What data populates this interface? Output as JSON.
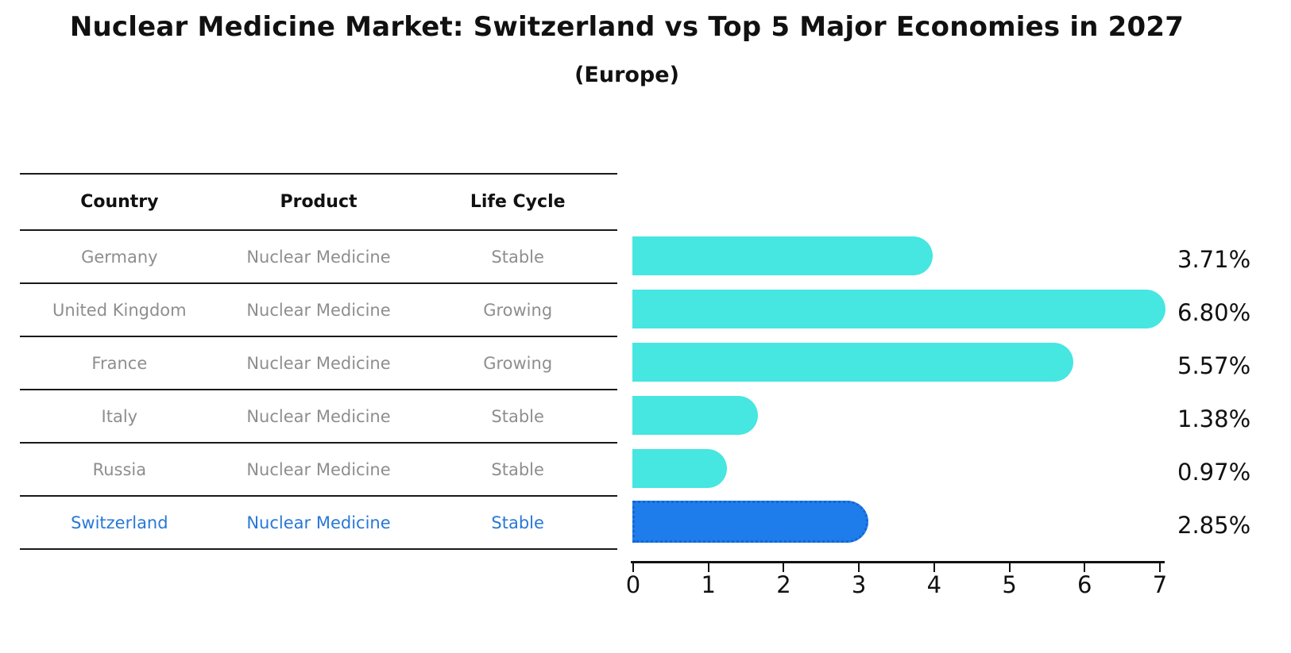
{
  "title": "Nuclear Medicine Market: Switzerland vs Top 5 Major Economies in 2027",
  "subtitle": "(Europe)",
  "table": {
    "columns": [
      "Country",
      "Product",
      "Life Cycle"
    ],
    "rows": [
      {
        "country": "Germany",
        "product": "Nuclear Medicine",
        "life_cycle": "Stable",
        "highlight": false
      },
      {
        "country": "United Kingdom",
        "product": "Nuclear Medicine",
        "life_cycle": "Growing",
        "highlight": false
      },
      {
        "country": "France",
        "product": "Nuclear Medicine",
        "life_cycle": "Growing",
        "highlight": false
      },
      {
        "country": "Italy",
        "product": "Nuclear Medicine",
        "life_cycle": "Stable",
        "highlight": false
      },
      {
        "country": "Russia",
        "product": "Nuclear Medicine",
        "life_cycle": "Stable",
        "highlight": false
      },
      {
        "country": "Switzerland",
        "product": "Nuclear Medicine",
        "life_cycle": "Stable",
        "highlight": true
      }
    ]
  },
  "chart_data": {
    "type": "bar",
    "orientation": "horizontal",
    "categories": [
      "Germany",
      "United Kingdom",
      "France",
      "Italy",
      "Russia",
      "Switzerland"
    ],
    "values": [
      3.71,
      6.8,
      5.57,
      1.38,
      0.97,
      2.85
    ],
    "value_labels": [
      "3.71%",
      "6.80%",
      "5.57%",
      "1.38%",
      "0.97%",
      "2.85%"
    ],
    "highlight_category": "Switzerland",
    "xlim": [
      0,
      7
    ],
    "x_ticks": [
      "0",
      "1",
      "2",
      "3",
      "4",
      "5",
      "6",
      "7"
    ],
    "grid": "off",
    "legend": "none",
    "colors": {
      "bar_default": "#46e6e1",
      "bar_highlight": "#1e7deb",
      "bar_highlight_border": "#1566d2",
      "highlight_text": "#2878d8",
      "row_text": "#8e8e8e",
      "axis_text": "#111111"
    }
  }
}
